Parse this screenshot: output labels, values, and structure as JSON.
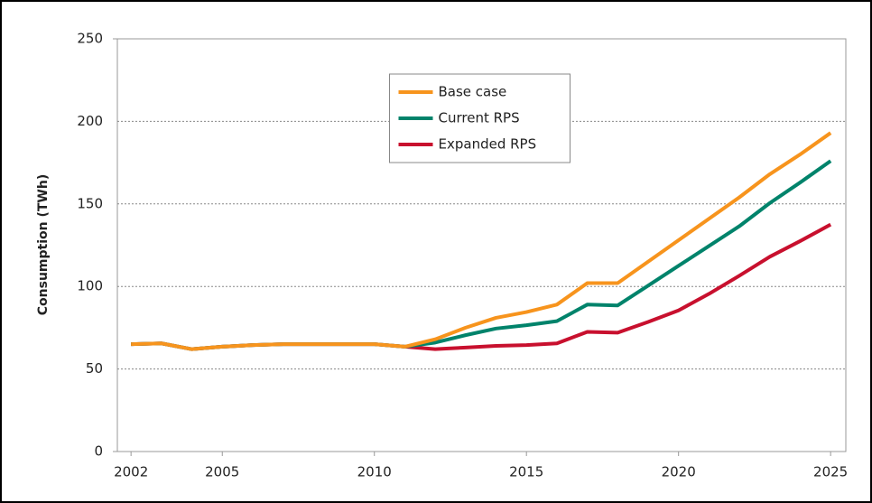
{
  "chart_data": {
    "type": "line",
    "ylabel": "Consumption (TWh)",
    "x": [
      2002,
      2003,
      2004,
      2005,
      2006,
      2007,
      2008,
      2009,
      2010,
      2011,
      2012,
      2013,
      2014,
      2015,
      2016,
      2017,
      2018,
      2019,
      2020,
      2021,
      2022,
      2023,
      2024,
      2025
    ],
    "series": [
      {
        "name": "Base case",
        "color": "#f7941d",
        "values": [
          65,
          65.5,
          62,
          63.5,
          64.5,
          65,
          65,
          65,
          65,
          63.5,
          68,
          75,
          81,
          84.5,
          89,
          102,
          102,
          115,
          128,
          141,
          154,
          168,
          180,
          193
        ]
      },
      {
        "name": "Current RPS",
        "color": "#00836b",
        "values": [
          65,
          65.5,
          62,
          63.5,
          64.5,
          65,
          65,
          65,
          65,
          63.5,
          66,
          70.5,
          74.5,
          76.5,
          79,
          89,
          88.5,
          100.5,
          112.5,
          124.5,
          136.5,
          150.5,
          163,
          176
        ]
      },
      {
        "name": "Expanded RPS",
        "color": "#c8102e",
        "values": [
          65,
          65.5,
          62,
          63.5,
          64.5,
          65,
          65,
          65,
          65,
          63.5,
          62,
          63,
          64,
          64.5,
          65.5,
          72.5,
          72,
          78.5,
          85.5,
          95.5,
          106.5,
          118,
          127.5,
          137.5
        ]
      }
    ],
    "xlim": [
      2001.55,
      2025.5
    ],
    "xticks": [
      2002,
      2005,
      2010,
      2015,
      2020,
      2025
    ],
    "ylim": [
      0,
      250
    ],
    "yticks": [
      0,
      50,
      100,
      150,
      200,
      250
    ],
    "grid": true,
    "legend": "upper center"
  }
}
